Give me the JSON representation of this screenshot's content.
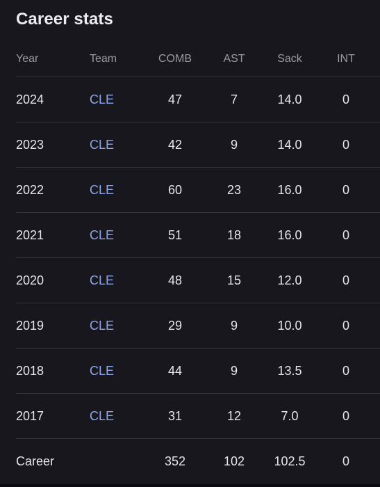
{
  "title": "Career stats",
  "columns": {
    "year": "Year",
    "team": "Team",
    "comb": "COMB",
    "ast": "AST",
    "sack": "Sack",
    "int": "INT"
  },
  "rows": [
    {
      "year": "2024",
      "team": "CLE",
      "comb": "47",
      "ast": "7",
      "sack": "14.0",
      "int": "0"
    },
    {
      "year": "2023",
      "team": "CLE",
      "comb": "42",
      "ast": "9",
      "sack": "14.0",
      "int": "0"
    },
    {
      "year": "2022",
      "team": "CLE",
      "comb": "60",
      "ast": "23",
      "sack": "16.0",
      "int": "0"
    },
    {
      "year": "2021",
      "team": "CLE",
      "comb": "51",
      "ast": "18",
      "sack": "16.0",
      "int": "0"
    },
    {
      "year": "2020",
      "team": "CLE",
      "comb": "48",
      "ast": "15",
      "sack": "12.0",
      "int": "0"
    },
    {
      "year": "2019",
      "team": "CLE",
      "comb": "29",
      "ast": "9",
      "sack": "10.0",
      "int": "0"
    },
    {
      "year": "2018",
      "team": "CLE",
      "comb": "44",
      "ast": "9",
      "sack": "13.5",
      "int": "0"
    },
    {
      "year": "2017",
      "team": "CLE",
      "comb": "31",
      "ast": "12",
      "sack": "7.0",
      "int": "0"
    }
  ],
  "career": {
    "label": "Career",
    "team": "",
    "comb": "352",
    "ast": "102",
    "sack": "102.5",
    "int": "0"
  },
  "colors": {
    "background": "#17171d",
    "text": "#e6e6ea",
    "muted": "#9a9aa4",
    "link": "#8ea6e8",
    "divider": "#34343c"
  }
}
